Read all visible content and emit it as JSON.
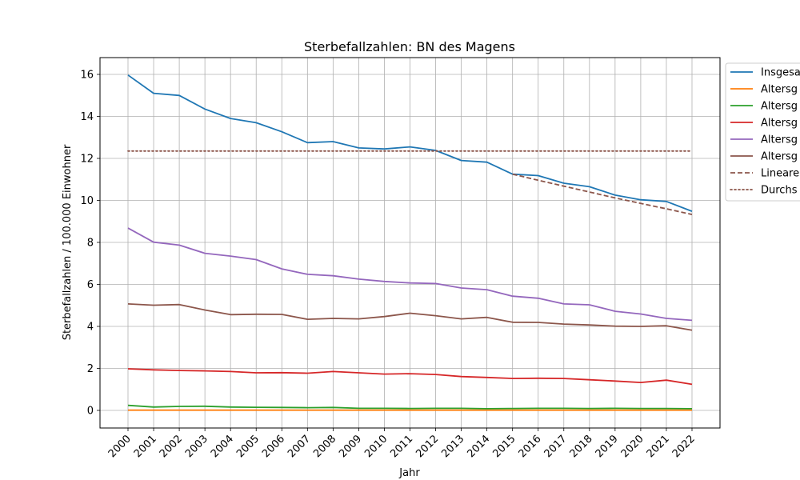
{
  "chart_data": {
    "type": "line",
    "title": "Sterbefallzahlen: BN des Magens",
    "xlabel": "Jahr",
    "ylabel": "Sterbefallzahlen / 100.000 Einwohner",
    "ylim": [
      -0.6,
      16.8
    ],
    "yticks": [
      0,
      2,
      4,
      6,
      8,
      10,
      12,
      14,
      16
    ],
    "grid": true,
    "legend_position": "top-right (partially clipped)",
    "x": [
      2000,
      2001,
      2002,
      2003,
      2004,
      2005,
      2006,
      2007,
      2008,
      2009,
      2010,
      2011,
      2012,
      2013,
      2014,
      2015,
      2016,
      2017,
      2018,
      2019,
      2020,
      2021,
      2022
    ],
    "series": [
      {
        "name": "Insgesa",
        "color": "#1f77b4",
        "style": "solid",
        "values": [
          15.97,
          15.1,
          15.0,
          14.35,
          13.9,
          13.7,
          13.27,
          12.75,
          12.8,
          12.5,
          12.45,
          12.55,
          12.38,
          11.9,
          11.82,
          11.25,
          11.18,
          10.82,
          10.65,
          10.25,
          10.03,
          9.95,
          9.48
        ]
      },
      {
        "name": "Altersg",
        "color": "#ff7f0e",
        "style": "solid",
        "values": [
          0.01,
          0.01,
          0.01,
          0.01,
          0.01,
          0.01,
          0.01,
          0.01,
          0.01,
          0.01,
          0.01,
          0.01,
          0.01,
          0.01,
          0.01,
          0.01,
          0.01,
          0.01,
          0.01,
          0.01,
          0.01,
          0.01,
          0.01
        ]
      },
      {
        "name": "Altersg",
        "color": "#2ca02c",
        "style": "solid",
        "values": [
          0.24,
          0.16,
          0.19,
          0.2,
          0.16,
          0.15,
          0.14,
          0.13,
          0.14,
          0.1,
          0.1,
          0.09,
          0.1,
          0.1,
          0.08,
          0.09,
          0.1,
          0.1,
          0.09,
          0.1,
          0.09,
          0.09,
          0.08
        ]
      },
      {
        "name": "Altersg",
        "color": "#d62728",
        "style": "solid",
        "values": [
          1.98,
          1.93,
          1.9,
          1.88,
          1.85,
          1.79,
          1.8,
          1.77,
          1.85,
          1.79,
          1.73,
          1.75,
          1.71,
          1.61,
          1.57,
          1.52,
          1.53,
          1.52,
          1.46,
          1.4,
          1.33,
          1.44,
          1.24
        ]
      },
      {
        "name": "Altersg",
        "color": "#9467bd",
        "style": "solid",
        "values": [
          8.68,
          8.01,
          7.87,
          7.48,
          7.35,
          7.18,
          6.74,
          6.48,
          6.41,
          6.25,
          6.14,
          6.07,
          6.04,
          5.83,
          5.75,
          5.44,
          5.34,
          5.07,
          5.03,
          4.72,
          4.59,
          4.38,
          4.29
        ]
      },
      {
        "name": "Altersg",
        "color": "#8c564b",
        "style": "solid",
        "values": [
          5.07,
          5.01,
          5.04,
          4.78,
          4.56,
          4.58,
          4.57,
          4.34,
          4.38,
          4.36,
          4.47,
          4.63,
          4.51,
          4.36,
          4.43,
          4.2,
          4.19,
          4.11,
          4.07,
          4.01,
          4.0,
          4.03,
          3.82
        ]
      },
      {
        "name": "Lineare",
        "color": "#8c564b",
        "style": "dashed",
        "x": [
          2015,
          2016,
          2017,
          2018,
          2019,
          2020,
          2021,
          2022
        ],
        "values": [
          11.25,
          10.96,
          10.68,
          10.4,
          10.12,
          9.86,
          9.6,
          9.33
        ]
      },
      {
        "name": "Durchs",
        "color": "#8c564b",
        "style": "dotted",
        "x": [
          2000,
          2022
        ],
        "values": [
          12.35,
          12.35
        ]
      }
    ]
  }
}
